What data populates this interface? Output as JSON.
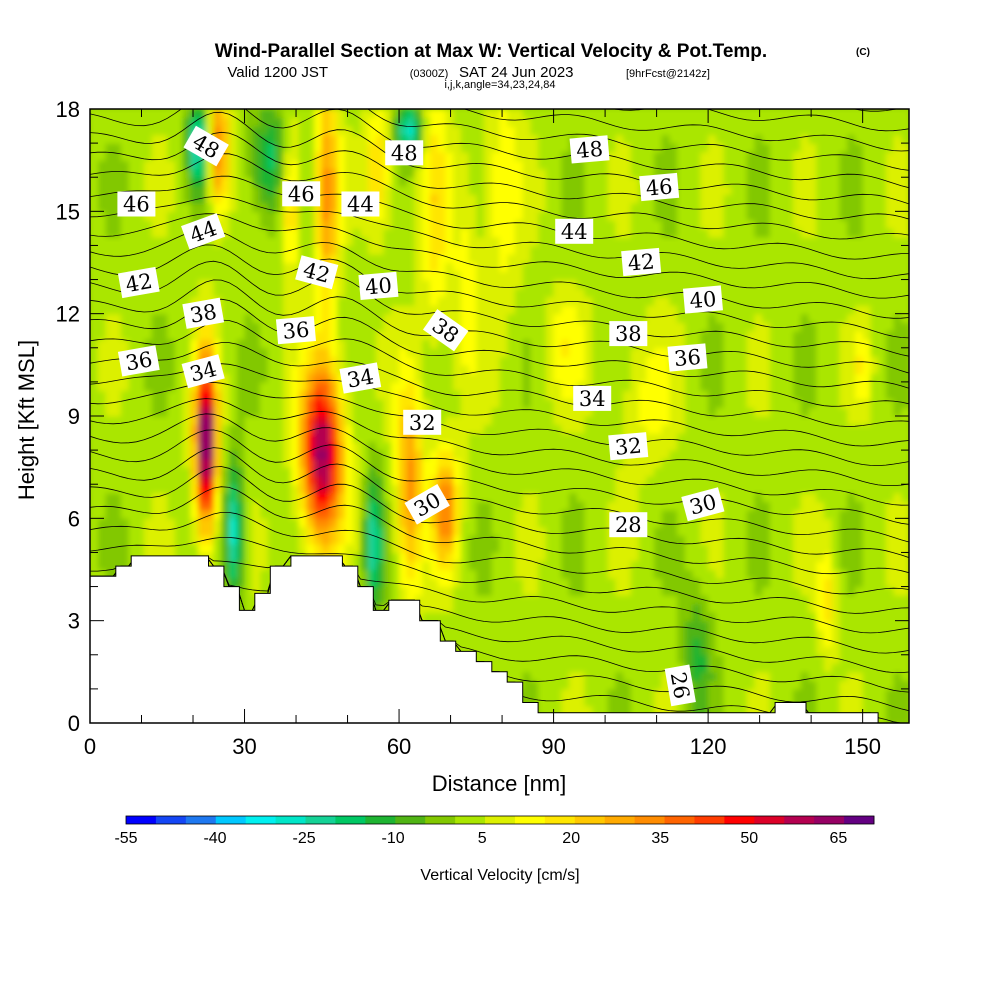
{
  "title": {
    "main": "Wind-Parallel Section at Max W: Vertical Velocity & Pot.Temp.",
    "copyright": "(C)",
    "valid_prefix": "Valid 1200 JST",
    "valid_utc": "(0300Z)",
    "valid_date": "SAT 24 Jun 2023",
    "forecast": "[9hrFcst@2142z]",
    "indices": "i,j,k,angle=34,23,24,84"
  },
  "chart_data": {
    "type": "heatmap",
    "xlabel": "Distance [nm]",
    "ylabel": "Height [Kft MSL]",
    "xlim": [
      0,
      159
    ],
    "ylim": [
      0,
      18
    ],
    "x_ticks": [
      "0",
      "30",
      "60",
      "90",
      "120",
      "150"
    ],
    "y_ticks": [
      "0",
      "3",
      "6",
      "9",
      "12",
      "15",
      "18"
    ],
    "colorbar": {
      "label": "Vertical Velocity [cm/s]",
      "min": -55,
      "max": 71,
      "tick_labels": [
        "-55",
        "-40",
        "-25",
        "-10",
        "5",
        "20",
        "35",
        "50",
        "65"
      ],
      "colors": [
        "#0000ff",
        "#1446f5",
        "#1e78f0",
        "#00c8ff",
        "#00f0f0",
        "#00e6c8",
        "#14d296",
        "#00c864",
        "#1eb432",
        "#50b414",
        "#82c800",
        "#aae600",
        "#dcf000",
        "#ffff00",
        "#ffe600",
        "#ffc800",
        "#ffaa00",
        "#ff8c00",
        "#ff6400",
        "#ff3c00",
        "#ff0000",
        "#dc0028",
        "#b40050",
        "#960064",
        "#640082"
      ]
    },
    "terrain_kft": [
      [
        0,
        4.3
      ],
      [
        5,
        4.3
      ],
      [
        5,
        4.6
      ],
      [
        8,
        4.6
      ],
      [
        8,
        4.9
      ],
      [
        23,
        4.9
      ],
      [
        23,
        4.6
      ],
      [
        26,
        4.6
      ],
      [
        26,
        4.0
      ],
      [
        29,
        4.0
      ],
      [
        29,
        3.3
      ],
      [
        32,
        3.3
      ],
      [
        32,
        3.8
      ],
      [
        35,
        3.8
      ],
      [
        35,
        4.6
      ],
      [
        39,
        4.6
      ],
      [
        39,
        4.9
      ],
      [
        49,
        4.9
      ],
      [
        49,
        4.6
      ],
      [
        52,
        4.6
      ],
      [
        52,
        4.0
      ],
      [
        55,
        4.0
      ],
      [
        55,
        3.3
      ],
      [
        58,
        3.3
      ],
      [
        58,
        3.6
      ],
      [
        64,
        3.6
      ],
      [
        64,
        3.0
      ],
      [
        68,
        3.0
      ],
      [
        68,
        2.4
      ],
      [
        71,
        2.4
      ],
      [
        71,
        2.1
      ],
      [
        75,
        2.1
      ],
      [
        75,
        1.8
      ],
      [
        78,
        1.8
      ],
      [
        78,
        1.5
      ],
      [
        81,
        1.5
      ],
      [
        81,
        1.2
      ],
      [
        84,
        1.2
      ],
      [
        84,
        0.6
      ],
      [
        87,
        0.6
      ],
      [
        87,
        0.3
      ],
      [
        133,
        0.3
      ],
      [
        133,
        0.6
      ],
      [
        139,
        0.6
      ],
      [
        139,
        0.3
      ],
      [
        153,
        0.3
      ],
      [
        153,
        0
      ],
      [
        159,
        0
      ]
    ],
    "w_features": [
      {
        "x": 22.5,
        "y": 8.2,
        "sx": 1.5,
        "sy": 1.8,
        "w": 68
      },
      {
        "x": 45,
        "y": 7.9,
        "sx": 2.8,
        "sy": 1.8,
        "w": 60
      },
      {
        "x": 62,
        "y": 7.0,
        "sx": 1.8,
        "sy": 2.2,
        "w": 30
      },
      {
        "x": 69,
        "y": 6.3,
        "sx": 1.8,
        "sy": 1.2,
        "w": 32
      },
      {
        "x": 28,
        "y": 5.6,
        "sx": 1.3,
        "sy": 1.4,
        "w": -30
      },
      {
        "x": 55,
        "y": 5.3,
        "sx": 1.3,
        "sy": 1.4,
        "w": -25
      },
      {
        "x": 35,
        "y": 16.5,
        "sx": 3.0,
        "sy": 1.2,
        "w": -20
      },
      {
        "x": 21,
        "y": 17,
        "sx": 1.5,
        "sy": 0.9,
        "w": -30
      },
      {
        "x": 25,
        "y": 16.8,
        "sx": 1.4,
        "sy": 1.3,
        "w": 35
      },
      {
        "x": 39,
        "y": 15.5,
        "sx": 1.4,
        "sy": 1.5,
        "w": 25
      },
      {
        "x": 46,
        "y": 15.5,
        "sx": 1.6,
        "sy": 2.5,
        "w": 28
      },
      {
        "x": 56,
        "y": 16.2,
        "sx": 1.8,
        "sy": 1.3,
        "w": 20
      },
      {
        "x": 62,
        "y": 17.4,
        "sx": 1.8,
        "sy": 0.6,
        "w": -30
      },
      {
        "x": 67,
        "y": 15,
        "sx": 2.0,
        "sy": 3.0,
        "w": 14
      },
      {
        "x": 73,
        "y": 13,
        "sx": 1.8,
        "sy": 2.5,
        "w": 10
      },
      {
        "x": 80,
        "y": 15.6,
        "sx": 2.5,
        "sy": 2.5,
        "w": 12
      },
      {
        "x": 118,
        "y": 2.0,
        "sx": 2.0,
        "sy": 1.4,
        "w": -14
      },
      {
        "x": 143,
        "y": 3.6,
        "sx": 1.2,
        "sy": 1.2,
        "w": 15
      },
      {
        "x": 150,
        "y": 10.5,
        "sx": 1.2,
        "sy": 0.8,
        "w": 12
      },
      {
        "x": 108,
        "y": 9.5,
        "sx": 4.0,
        "sy": 1.5,
        "w": 9
      },
      {
        "x": 92,
        "y": 11,
        "sx": 3.0,
        "sy": 1.2,
        "w": 10
      }
    ],
    "theta_contours": [
      26,
      28,
      30,
      32,
      34,
      36,
      38,
      40,
      42,
      44,
      46,
      48
    ],
    "contour_labels": [
      {
        "text": "48",
        "x": 22.5,
        "y": 16.9,
        "angle": 30
      },
      {
        "text": "46",
        "x": 9,
        "y": 15.2,
        "angle": 0
      },
      {
        "text": "44",
        "x": 22,
        "y": 14.4,
        "angle": -20
      },
      {
        "text": "42",
        "x": 9.5,
        "y": 12.9,
        "angle": -10
      },
      {
        "text": "38",
        "x": 22,
        "y": 12,
        "angle": -10
      },
      {
        "text": "36",
        "x": 9.5,
        "y": 10.6,
        "angle": -10
      },
      {
        "text": "34",
        "x": 22,
        "y": 10.3,
        "angle": -15
      },
      {
        "text": "46",
        "x": 41,
        "y": 15.5,
        "angle": 0
      },
      {
        "text": "42",
        "x": 44,
        "y": 13.2,
        "angle": 15
      },
      {
        "text": "36",
        "x": 40,
        "y": 11.5,
        "angle": -5
      },
      {
        "text": "48",
        "x": 61,
        "y": 16.7,
        "angle": 0
      },
      {
        "text": "44",
        "x": 52.5,
        "y": 15.2,
        "angle": 0
      },
      {
        "text": "40",
        "x": 56,
        "y": 12.8,
        "angle": -5
      },
      {
        "text": "34",
        "x": 52.5,
        "y": 10.1,
        "angle": -10
      },
      {
        "text": "38",
        "x": 69,
        "y": 11.5,
        "angle": 35
      },
      {
        "text": "32",
        "x": 64.5,
        "y": 8.8,
        "angle": 0
      },
      {
        "text": "30",
        "x": 65.5,
        "y": 6.4,
        "angle": -30
      },
      {
        "text": "48",
        "x": 97,
        "y": 16.8,
        "angle": -5
      },
      {
        "text": "46",
        "x": 110.5,
        "y": 15.7,
        "angle": -5
      },
      {
        "text": "44",
        "x": 94,
        "y": 14.4,
        "angle": 0
      },
      {
        "text": "42",
        "x": 107,
        "y": 13.5,
        "angle": -5
      },
      {
        "text": "40",
        "x": 119,
        "y": 12.4,
        "angle": -5
      },
      {
        "text": "38",
        "x": 104.5,
        "y": 11.4,
        "angle": 0
      },
      {
        "text": "36",
        "x": 116,
        "y": 10.7,
        "angle": -5
      },
      {
        "text": "34",
        "x": 97.5,
        "y": 9.5,
        "angle": 0
      },
      {
        "text": "32",
        "x": 104.5,
        "y": 8.1,
        "angle": -5
      },
      {
        "text": "30",
        "x": 119,
        "y": 6.4,
        "angle": -15
      },
      {
        "text": "28",
        "x": 104.5,
        "y": 5.8,
        "angle": 0
      },
      {
        "text": "26",
        "x": 114.5,
        "y": 1.1,
        "angle": 80
      }
    ]
  }
}
